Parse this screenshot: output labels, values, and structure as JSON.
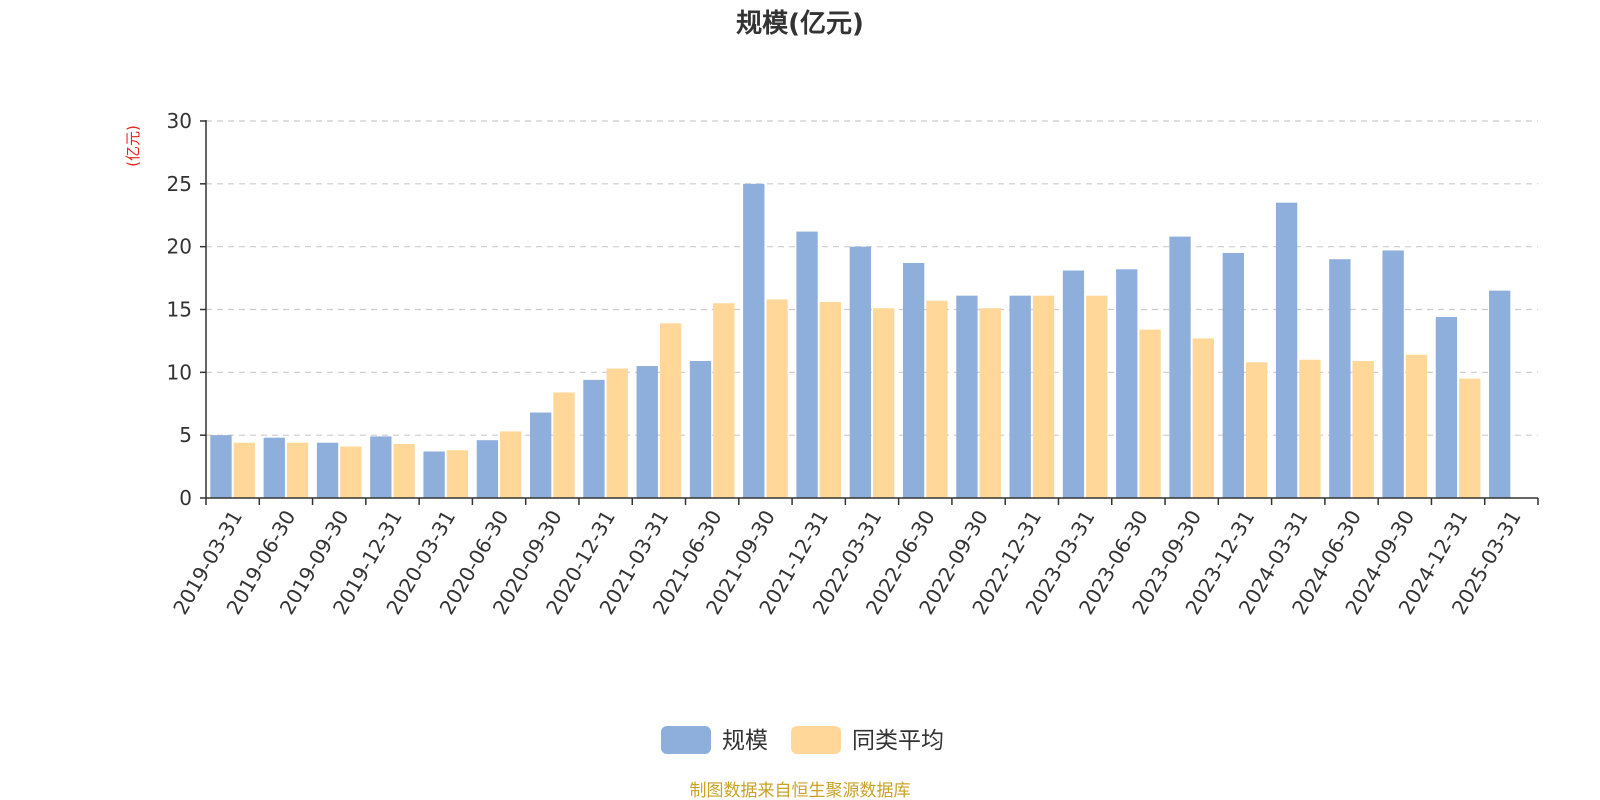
{
  "chart_data": {
    "type": "bar",
    "title": "规模(亿元)",
    "ylabel": "(亿元)",
    "ylim": [
      0,
      30
    ],
    "yticks": [
      0,
      5,
      10,
      15,
      20,
      25,
      30
    ],
    "grid": true,
    "legend_position": "bottom-center",
    "categories": [
      "2019-03-31",
      "2019-06-30",
      "2019-09-30",
      "2019-12-31",
      "2020-03-31",
      "2020-06-30",
      "2020-09-30",
      "2020-12-31",
      "2021-03-31",
      "2021-06-30",
      "2021-09-30",
      "2021-12-31",
      "2022-03-31",
      "2022-06-30",
      "2022-09-30",
      "2022-12-31",
      "2023-03-31",
      "2023-06-30",
      "2023-09-30",
      "2023-12-31",
      "2024-03-31",
      "2024-06-30",
      "2024-09-30",
      "2024-12-31",
      "2025-03-31"
    ],
    "series": [
      {
        "name": "规模",
        "color": "#8eaedb",
        "values": [
          5.0,
          4.8,
          4.4,
          4.9,
          3.7,
          4.6,
          6.8,
          9.4,
          10.5,
          10.9,
          25.0,
          21.2,
          20.0,
          18.7,
          16.1,
          16.1,
          18.1,
          18.2,
          20.8,
          19.5,
          23.5,
          19.0,
          19.7,
          14.4,
          16.5
        ]
      },
      {
        "name": "同类平均",
        "color": "#ffd899",
        "values": [
          4.4,
          4.4,
          4.1,
          4.3,
          3.8,
          5.3,
          8.4,
          10.3,
          13.9,
          15.5,
          15.8,
          15.6,
          15.1,
          15.7,
          15.1,
          16.1,
          16.1,
          13.4,
          12.7,
          10.8,
          11.0,
          10.9,
          11.4,
          9.5,
          null
        ]
      }
    ],
    "source_note": "制图数据来自恒生聚源数据库"
  }
}
